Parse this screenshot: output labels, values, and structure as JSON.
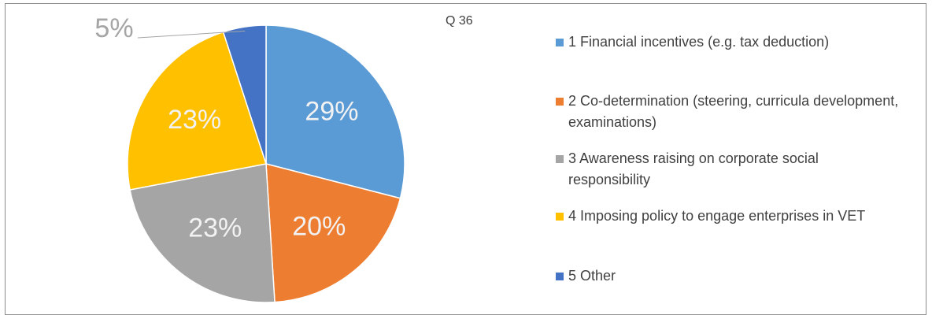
{
  "chart_data": {
    "type": "pie",
    "title": "Q 36",
    "categories": [
      "1 Financial incentives (e.g. tax deduction)",
      "2 Co-determination (steering, curricula development, examinations)",
      "3 Awareness raising on corporate social responsibility",
      "4 Imposing policy to engage enterprises in VET",
      "5 Other"
    ],
    "values": [
      29,
      20,
      23,
      23,
      5
    ],
    "value_labels": [
      "29%",
      "20%",
      "23%",
      "23%",
      "5%"
    ],
    "colors": [
      "#5b9bd5",
      "#ed7d31",
      "#a5a5a5",
      "#ffc000",
      "#4472c4"
    ],
    "legend": "right"
  }
}
